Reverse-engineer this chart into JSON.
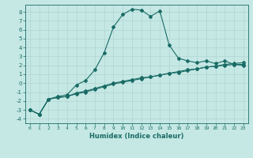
{
  "xlabel": "Humidex (Indice chaleur)",
  "ylabel": "",
  "bg_color": "#c5e8e5",
  "grid_color": "#b0d5d2",
  "line_color": "#1a6b65",
  "xlim": [
    -0.5,
    23.5
  ],
  "ylim": [
    -4.5,
    8.8
  ],
  "yticks": [
    -4,
    -3,
    -2,
    -1,
    0,
    1,
    2,
    3,
    4,
    5,
    6,
    7,
    8
  ],
  "xticks": [
    0,
    1,
    2,
    3,
    4,
    5,
    6,
    7,
    8,
    9,
    10,
    11,
    12,
    13,
    14,
    15,
    16,
    17,
    18,
    19,
    20,
    21,
    22,
    23
  ],
  "line1_x": [
    0,
    1,
    2,
    3,
    4,
    5,
    6,
    7,
    8,
    9,
    10,
    11,
    12,
    13,
    14,
    15,
    16,
    17,
    18,
    19,
    20,
    21,
    22,
    23
  ],
  "line1_y": [
    -3.0,
    -3.5,
    -1.8,
    -1.5,
    -1.3,
    -0.2,
    0.3,
    1.5,
    3.4,
    6.3,
    7.7,
    8.3,
    8.2,
    7.5,
    8.1,
    4.3,
    2.8,
    2.5,
    2.3,
    2.5,
    2.2,
    2.5,
    2.1,
    2.0
  ],
  "line2_x": [
    0,
    1,
    2,
    3,
    4,
    5,
    6,
    7,
    8,
    9,
    10,
    11,
    12,
    13,
    14,
    15,
    16,
    17,
    18,
    19,
    20,
    21,
    22,
    23
  ],
  "line2_y": [
    -3.0,
    -3.5,
    -1.8,
    -1.6,
    -1.5,
    -1.2,
    -1.0,
    -0.7,
    -0.4,
    -0.1,
    0.1,
    0.3,
    0.5,
    0.7,
    0.9,
    1.1,
    1.3,
    1.5,
    1.6,
    1.8,
    1.9,
    2.1,
    2.2,
    2.3
  ],
  "line3_x": [
    0,
    1,
    2,
    3,
    4,
    5,
    6,
    7,
    8,
    9,
    10,
    11,
    12,
    13,
    14,
    15,
    16,
    17,
    18,
    19,
    20,
    21,
    22,
    23
  ],
  "line3_y": [
    -3.0,
    -3.5,
    -1.8,
    -1.6,
    -1.5,
    -1.1,
    -0.9,
    -0.6,
    -0.3,
    0.0,
    0.2,
    0.4,
    0.6,
    0.7,
    0.9,
    1.1,
    1.2,
    1.4,
    1.6,
    1.8,
    1.9,
    2.0,
    2.1,
    2.1
  ],
  "marker": "D",
  "marker_size": 2.0,
  "linewidth": 0.8
}
